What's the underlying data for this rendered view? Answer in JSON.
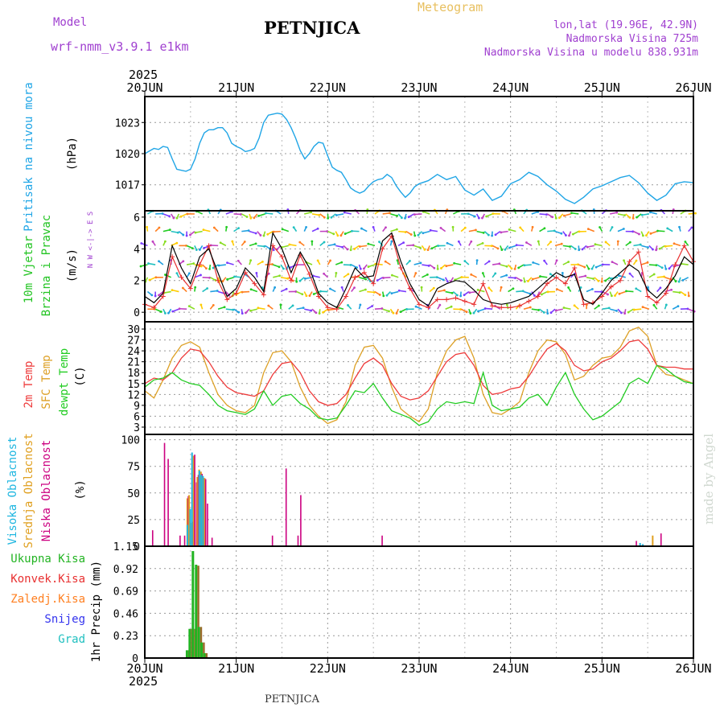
{
  "header": {
    "model_label": "Model",
    "model_name": "wrf-nmm_v3.9.1 e1km",
    "station": "PETNJICA",
    "product": "Meteogram",
    "lonlat": "lon,lat (19.96E, 42.9N)",
    "elevation": "Nadmorska Visina 725m",
    "model_elevation": "Nadmorska Visina u modelu 838.931m",
    "footer_station": "PETNJICA",
    "credit": "made by Angel",
    "year_top": "2025",
    "year_bottom": "2025"
  },
  "colors": {
    "pressure": "#1fa5e6",
    "wind_label": "#22c422",
    "wind_speed": "#000000",
    "gust": "#e83030",
    "t2m": "#ee3b3b",
    "tsfc": "#dda025",
    "dewpoint": "#22cc22",
    "cloud_high": "#1fb6e0",
    "cloud_mid": "#e0a020",
    "cloud_low": "#cc0080",
    "precip_total": "#22b422",
    "precip_conv": "#e83030",
    "precip_frz": "#ff7f20",
    "snow": "#3333ee",
    "graupel": "#20c0c0",
    "header_purple": "#a040d0",
    "header_gold": "#e8c060",
    "credit_gray": "#d0d8d0"
  },
  "chart_data": [
    {
      "type": "line",
      "panel": "pressure",
      "ylabel_colored": "Pritisak na nivou mora",
      "unit": "(hPa)",
      "yticks": [
        1017,
        1020,
        1023
      ],
      "ylim": [
        1014.5,
        1025.5
      ],
      "x_days": [
        0,
        0.1,
        0.15,
        0.2,
        0.25,
        0.3,
        0.35,
        0.4,
        0.45,
        0.5,
        0.55,
        0.6,
        0.65,
        0.7,
        0.75,
        0.8,
        0.85,
        0.9,
        0.95,
        1.0,
        1.05,
        1.1,
        1.15,
        1.2,
        1.25,
        1.3,
        1.35,
        1.4,
        1.45,
        1.5,
        1.55,
        1.6,
        1.65,
        1.7,
        1.75,
        1.8,
        1.85,
        1.9,
        1.95,
        2.0,
        2.05,
        2.1,
        2.15,
        2.2,
        2.25,
        2.3,
        2.35,
        2.4,
        2.45,
        2.5,
        2.55,
        2.6,
        2.65,
        2.7,
        2.75,
        2.8,
        2.85,
        2.9,
        2.95,
        3.0,
        3.1,
        3.2,
        3.3,
        3.4,
        3.5,
        3.6,
        3.7,
        3.8,
        3.9,
        4.0,
        4.1,
        4.2,
        4.3,
        4.4,
        4.5,
        4.6,
        4.7,
        4.8,
        4.9,
        5.0,
        5.1,
        5.2,
        5.3,
        5.4,
        5.5,
        5.6,
        5.7,
        5.8,
        5.9,
        6.0
      ],
      "series": [
        {
          "name": "pressure",
          "values": [
            1020.0,
            1020.5,
            1020.4,
            1020.7,
            1020.6,
            1019.5,
            1018.5,
            1018.4,
            1018.3,
            1018.5,
            1019.5,
            1021.0,
            1022.0,
            1022.3,
            1022.3,
            1022.5,
            1022.5,
            1022.0,
            1021.0,
            1020.7,
            1020.5,
            1020.2,
            1020.3,
            1020.5,
            1021.5,
            1023.0,
            1023.7,
            1023.8,
            1023.9,
            1023.8,
            1023.3,
            1022.5,
            1021.5,
            1020.3,
            1019.5,
            1020.0,
            1020.7,
            1021.1,
            1021.0,
            1019.8,
            1018.7,
            1018.4,
            1018.2,
            1017.5,
            1016.7,
            1016.4,
            1016.2,
            1016.4,
            1016.9,
            1017.3,
            1017.5,
            1017.6,
            1018.0,
            1017.7,
            1016.9,
            1016.3,
            1015.8,
            1016.2,
            1016.8,
            1017.1,
            1017.4,
            1018.0,
            1017.5,
            1017.8,
            1016.5,
            1016.0,
            1016.6,
            1015.5,
            1015.9,
            1017.1,
            1017.5,
            1018.2,
            1017.8,
            1017.0,
            1016.4,
            1015.6,
            1015.2,
            1015.8,
            1016.6,
            1016.9,
            1017.3,
            1017.7,
            1017.9,
            1017.2,
            1016.2,
            1015.5,
            1016.0,
            1017.1,
            1017.3,
            1017.2
          ]
        }
      ]
    },
    {
      "type": "line",
      "panel": "wind",
      "ylabel_colored": [
        "10m Vjetar",
        "Brzina i Pravac"
      ],
      "unit": "(m/s)",
      "compass": "N  W <-|-> E  S",
      "yticks": [
        0,
        2,
        4,
        6
      ],
      "ylim": [
        -0.6,
        6.4
      ],
      "x_days": [
        0,
        0.1,
        0.2,
        0.3,
        0.4,
        0.5,
        0.6,
        0.7,
        0.8,
        0.9,
        1.0,
        1.1,
        1.2,
        1.3,
        1.4,
        1.5,
        1.6,
        1.7,
        1.8,
        1.9,
        2.0,
        2.1,
        2.2,
        2.3,
        2.4,
        2.5,
        2.6,
        2.7,
        2.8,
        2.9,
        3.0,
        3.1,
        3.2,
        3.3,
        3.4,
        3.5,
        3.6,
        3.7,
        3.8,
        3.9,
        4.0,
        4.1,
        4.2,
        4.3,
        4.4,
        4.5,
        4.6,
        4.7,
        4.8,
        4.9,
        5.0,
        5.1,
        5.2,
        5.3,
        5.4,
        5.5,
        5.6,
        5.7,
        5.8,
        5.9,
        6.0
      ],
      "series": [
        {
          "name": "speed",
          "values": [
            1.0,
            0.6,
            1.2,
            4.2,
            2.8,
            1.8,
            3.5,
            4.0,
            2.5,
            1.0,
            1.5,
            2.8,
            2.2,
            1.3,
            5.0,
            4.0,
            2.5,
            3.8,
            2.8,
            1.2,
            0.6,
            0.3,
            1.5,
            2.8,
            2.2,
            2.3,
            4.5,
            5.0,
            3.2,
            1.8,
            0.8,
            0.4,
            1.5,
            1.8,
            2.0,
            1.9,
            1.4,
            0.8,
            0.6,
            0.5,
            0.6,
            0.8,
            1.0,
            1.5,
            2.0,
            2.5,
            2.2,
            2.4,
            0.8,
            0.5,
            1.2,
            2.0,
            2.5,
            3.0,
            2.6,
            1.4,
            0.9,
            1.5,
            2.3,
            3.5,
            3.0
          ]
        },
        {
          "name": "gust",
          "values": [
            0.5,
            0.3,
            1.0,
            3.5,
            2.2,
            1.5,
            3.0,
            4.2,
            2.0,
            0.8,
            1.2,
            2.5,
            1.8,
            1.1,
            4.2,
            3.5,
            2.0,
            3.6,
            2.4,
            1.0,
            0.3,
            0.2,
            1.0,
            2.2,
            2.5,
            1.8,
            4.0,
            4.8,
            2.8,
            1.5,
            0.5,
            0.3,
            0.8,
            0.8,
            0.9,
            0.7,
            0.5,
            1.8,
            0.4,
            0.3,
            0.3,
            0.4,
            0.7,
            1.0,
            1.8,
            2.2,
            1.8,
            2.8,
            0.5,
            0.6,
            1.0,
            1.6,
            2.0,
            3.2,
            3.8,
            1.0,
            0.6,
            1.2,
            3.0,
            4.2,
            3.2
          ]
        }
      ],
      "barbs_rows_ms": [
        0.2,
        1.3,
        2.2,
        3.0,
        4.2,
        5.1,
        6.2
      ]
    },
    {
      "type": "line",
      "panel": "temperature",
      "ylabel_colored": [
        "2m Temp",
        "SFC Temp",
        "dewpt Temp"
      ],
      "unit": "(C)",
      "yticks": [
        3,
        6,
        9,
        12,
        15,
        18,
        21,
        24,
        27,
        30
      ],
      "ylim": [
        1,
        32
      ],
      "x_days": [
        0,
        0.1,
        0.2,
        0.3,
        0.4,
        0.5,
        0.6,
        0.7,
        0.8,
        0.9,
        1.0,
        1.1,
        1.2,
        1.3,
        1.4,
        1.5,
        1.6,
        1.7,
        1.8,
        1.9,
        2.0,
        2.1,
        2.2,
        2.3,
        2.4,
        2.5,
        2.6,
        2.7,
        2.8,
        2.9,
        3.0,
        3.1,
        3.2,
        3.3,
        3.4,
        3.5,
        3.6,
        3.7,
        3.8,
        3.9,
        4.0,
        4.1,
        4.2,
        4.3,
        4.4,
        4.5,
        4.6,
        4.7,
        4.8,
        4.9,
        5.0,
        5.1,
        5.2,
        5.3,
        5.4,
        5.5,
        5.6,
        5.7,
        5.8,
        5.9,
        6.0
      ],
      "series": [
        {
          "name": "2m Temp",
          "values": [
            15.0,
            16.5,
            16.0,
            18.0,
            22.0,
            24.5,
            24.0,
            21.0,
            17.0,
            14.0,
            12.5,
            12.0,
            11.5,
            13.0,
            17.5,
            20.5,
            21.0,
            18.0,
            13.0,
            10.0,
            9.0,
            9.5,
            12.0,
            16.5,
            20.5,
            22.0,
            20.0,
            15.0,
            11.5,
            10.5,
            11.0,
            13.0,
            17.0,
            21.0,
            23.0,
            23.5,
            20.0,
            14.5,
            12.0,
            12.5,
            13.5,
            14.0,
            17.0,
            21.0,
            24.5,
            26.0,
            24.0,
            20.0,
            18.5,
            19.0,
            21.0,
            22.0,
            24.0,
            26.5,
            27.0,
            24.5,
            20.0,
            19.5,
            19.5,
            19.0,
            19.0
          ]
        },
        {
          "name": "SFC Temp",
          "values": [
            13.0,
            11.0,
            16.0,
            22.0,
            25.5,
            26.5,
            25.0,
            18.0,
            12.0,
            9.0,
            7.5,
            7.0,
            9.0,
            18.0,
            23.5,
            24.0,
            21.0,
            14.0,
            9.0,
            6.0,
            4.0,
            5.0,
            10.0,
            20.0,
            25.0,
            25.5,
            22.0,
            14.0,
            8.0,
            6.0,
            4.5,
            8.0,
            18.0,
            24.0,
            27.0,
            28.0,
            22.0,
            12.0,
            7.0,
            6.5,
            8.0,
            10.0,
            18.0,
            24.0,
            27.0,
            26.5,
            23.0,
            16.0,
            17.0,
            20.0,
            22.0,
            22.5,
            25.0,
            29.5,
            30.5,
            28.0,
            20.0,
            17.5,
            17.0,
            16.0,
            15.0
          ]
        },
        {
          "name": "dewpt Temp",
          "values": [
            14.0,
            16.0,
            16.5,
            18.0,
            16.0,
            15.0,
            14.5,
            12.0,
            9.0,
            7.5,
            7.0,
            6.5,
            8.0,
            13.0,
            9.0,
            11.5,
            12.0,
            9.5,
            8.0,
            5.5,
            5.0,
            5.5,
            9.0,
            13.0,
            12.5,
            15.0,
            11.0,
            7.5,
            6.5,
            5.5,
            3.5,
            4.5,
            8.0,
            10.0,
            9.5,
            10.0,
            9.5,
            18.0,
            9.0,
            7.5,
            8.0,
            8.5,
            11.0,
            12.0,
            9.0,
            14.0,
            18.0,
            12.0,
            8.0,
            5.0,
            6.0,
            8.0,
            10.0,
            15.0,
            16.5,
            15.0,
            20.0,
            19.0,
            17.0,
            15.5,
            15.0
          ]
        }
      ]
    },
    {
      "type": "bar",
      "panel": "clouds",
      "ylabel_colored": [
        "Visoka Oblacnost",
        "Srednja Oblacnost",
        "Niska Oblacnost"
      ],
      "unit": "(%)",
      "yticks": [
        0,
        25,
        50,
        75,
        100
      ],
      "ylim": [
        0,
        105
      ],
      "bars": [
        {
          "t": 0.07,
          "low": 15
        },
        {
          "t": 0.2,
          "low": 97
        },
        {
          "t": 0.24,
          "low": 82
        },
        {
          "t": 0.37,
          "low": 10
        },
        {
          "t": 0.42,
          "low": 10
        },
        {
          "t": 0.46,
          "mid": 45,
          "low": 47
        },
        {
          "t": 0.48,
          "mid": 48,
          "high": 20
        },
        {
          "t": 0.51,
          "high": 35,
          "mid": 22,
          "low": 23
        },
        {
          "t": 0.53,
          "high": 88,
          "mid": 85,
          "low": 86
        },
        {
          "t": 0.55,
          "low": 60
        },
        {
          "t": 0.57,
          "mid": 65,
          "low": 67
        },
        {
          "t": 0.59,
          "mid": 72,
          "low": 70
        },
        {
          "t": 0.61,
          "high": 71,
          "mid": 70,
          "low": 68
        },
        {
          "t": 0.63,
          "high": 67,
          "mid": 65,
          "low": 64
        },
        {
          "t": 0.65,
          "high": 66,
          "mid": 64,
          "low": 63
        },
        {
          "t": 0.67,
          "low": 40
        },
        {
          "t": 0.72,
          "low": 8
        },
        {
          "t": 1.38,
          "low": 10
        },
        {
          "t": 1.53,
          "low": 73
        },
        {
          "t": 1.66,
          "low": 10
        },
        {
          "t": 1.69,
          "low": 48
        },
        {
          "t": 2.58,
          "low": 10
        },
        {
          "t": 5.36,
          "low": 5
        },
        {
          "t": 5.43,
          "high": 3
        },
        {
          "t": 5.46,
          "high": 2
        },
        {
          "t": 5.55,
          "mid": 10
        },
        {
          "t": 5.63,
          "low": 12
        }
      ]
    },
    {
      "type": "bar",
      "panel": "precipitation",
      "ylabel_colored": [
        "Ukupna Kisa",
        "Konvek.Kisa",
        "Zaledj.Kisa",
        "Snijeg",
        "Grad"
      ],
      "unit": "1hr Precip (mm)",
      "yticks": [
        0,
        0.23,
        0.46,
        0.69,
        0.92,
        1.15
      ],
      "ylim": [
        0,
        1.15
      ],
      "bars": [
        {
          "t": 0.47,
          "total": 0.08,
          "conv": 0.08
        },
        {
          "t": 0.5,
          "total": 0.3,
          "conv": 0.3
        },
        {
          "t": 0.535,
          "total": 1.1,
          "conv": 0.3
        },
        {
          "t": 0.57,
          "total": 0.96,
          "conv": 0.95
        },
        {
          "t": 0.6,
          "total": 0.32,
          "conv": 0.32
        },
        {
          "t": 0.63,
          "total": 0.16,
          "conv": 0.16
        },
        {
          "t": 0.66,
          "total": 0.05,
          "conv": 0.05
        }
      ]
    }
  ],
  "time_axis": {
    "ticks": [
      "20JUN",
      "21JUN",
      "22JUN",
      "23JUN",
      "24JUN",
      "25JUN",
      "26JUN"
    ]
  }
}
